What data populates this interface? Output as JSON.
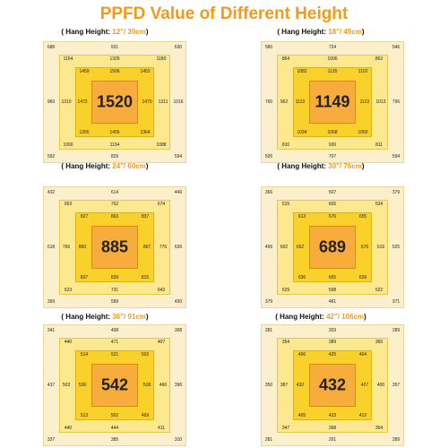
{
  "title": "PPFD Value of Different Height",
  "panels": [
    {
      "label_prefix": "( Hang Height: ",
      "height": "12\"/ 30cm",
      "label_suffix": ")",
      "center": "1520",
      "outer": [
        "688",
        "931",
        "630",
        "1016",
        "594",
        "829",
        "592",
        "960"
      ],
      "ring1": [
        "1164",
        "1326",
        "1180",
        "1088",
        "1194",
        "1060",
        "1310"
      ],
      "ring2": [
        "1459",
        "1506",
        "1453",
        "1470",
        "1364",
        "1406",
        "1355",
        "1472"
      ],
      "ring1_right": "1311"
    },
    {
      "label_prefix": "( Hang Height: ",
      "height": "18\"/ 45cm",
      "label_suffix": ")",
      "center": "1149",
      "outer": [
        "580",
        "724",
        "546",
        "796",
        "594",
        "707",
        "505",
        "760"
      ],
      "ring1": [
        "864",
        "1006",
        "863",
        "811",
        "926",
        "810",
        "962"
      ],
      "ring2": [
        "1082",
        "1135",
        "1102",
        "1122",
        "1050",
        "1068",
        "1034",
        "1113"
      ],
      "ring1_right": "1013"
    },
    {
      "label_prefix": "( Hang Height: ",
      "height": "24\"/ 60cm",
      "label_suffix": ")",
      "center": "885",
      "outer": [
        "432",
        "614",
        "449",
        "636",
        "430",
        "589",
        "399",
        "618"
      ],
      "ring1": [
        "653",
        "762",
        "674",
        "643",
        "731",
        "623",
        "766"
      ],
      "ring2": [
        "827",
        "863",
        "837",
        "867",
        "815",
        "839",
        "807",
        "860"
      ],
      "ring1_right": "776"
    },
    {
      "label_prefix": "( Hang Height: ",
      "height": "30\"/ 76cm",
      "label_suffix": ")",
      "center": "689",
      "outer": [
        "366",
        "507",
        "379",
        "525",
        "371",
        "481",
        "379",
        "499"
      ],
      "ring1": [
        "515",
        "605",
        "534",
        "522",
        "598",
        "529",
        "602"
      ],
      "ring2": [
        "613",
        "676",
        "655",
        "676",
        "639",
        "655",
        "636",
        "652"
      ],
      "ring1_right": "619"
    },
    {
      "label_prefix": "( Hang Height: ",
      "height": "36\"/ 91cm",
      "label_suffix": ")",
      "center": "542",
      "outer": [
        "341",
        "408",
        "308",
        "396",
        "310",
        "385",
        "337",
        "437"
      ],
      "ring1": [
        "440",
        "471",
        "407",
        "411",
        "444",
        "440",
        "503"
      ],
      "ring2": [
        "514",
        "521",
        "502",
        "518",
        "469",
        "502",
        "513",
        "536"
      ],
      "ring1_right": "466"
    },
    {
      "label_prefix": "( Hang Height: ",
      "height": "42\"/ 106cm",
      "label_suffix": ")",
      "center": "432",
      "outer": [
        "281",
        "303",
        "289",
        "357",
        "289",
        "291",
        "281",
        "350"
      ],
      "ring1": [
        "354",
        "389",
        "360",
        "354",
        "398",
        "347",
        "387"
      ],
      "ring2": [
        "400",
        "425",
        "404",
        "427",
        "412",
        "423",
        "405",
        "432"
      ],
      "ring1_right": "400"
    }
  ]
}
